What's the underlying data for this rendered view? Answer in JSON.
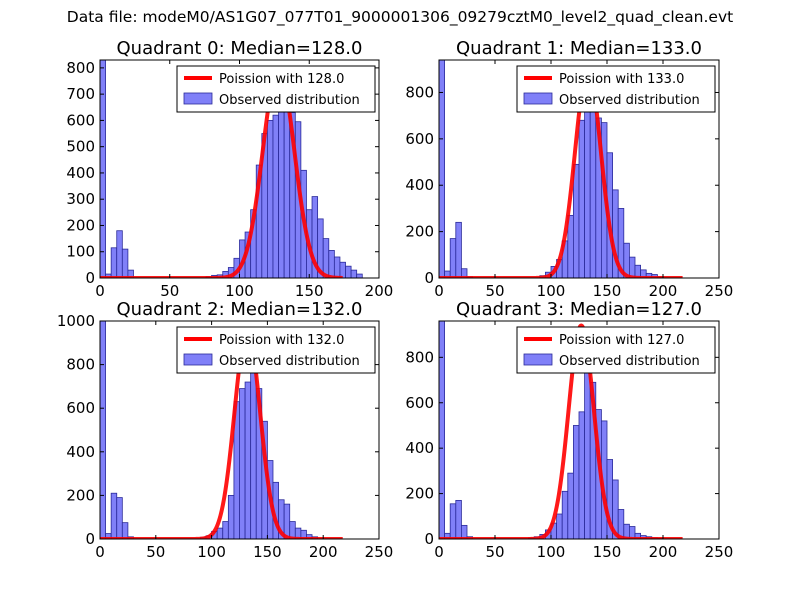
{
  "figure": {
    "suptitle": "Data file: modeM0/AS1G07_077T01_9000001306_09279cztM0_level2_quad_clean.evt"
  },
  "chart_data": [
    {
      "type": "bar",
      "title": "Quadrant 0: Median=128.0",
      "xlim": [
        0,
        200
      ],
      "ylim": [
        0,
        830
      ],
      "xticks": [
        0,
        50,
        100,
        150,
        200
      ],
      "yticks": [
        0,
        100,
        200,
        300,
        400,
        500,
        600,
        700,
        800
      ],
      "legend": {
        "position": "top-right",
        "line_label": "Poission with 128.0",
        "bar_label": "Observed distribution"
      },
      "poisson_mean": 128.0,
      "poisson_peak": 800,
      "bin_width": 4,
      "bin_starts": [
        0,
        4,
        8,
        12,
        16,
        20,
        76,
        80,
        84,
        88,
        92,
        96,
        100,
        104,
        108,
        112,
        116,
        120,
        124,
        128,
        132,
        136,
        140,
        144,
        148,
        152,
        156,
        160,
        164,
        168,
        172,
        176,
        180,
        184
      ],
      "counts": [
        830,
        15,
        115,
        180,
        110,
        30,
        5,
        10,
        12,
        25,
        40,
        75,
        145,
        175,
        260,
        430,
        550,
        600,
        620,
        680,
        690,
        630,
        595,
        410,
        260,
        310,
        225,
        150,
        105,
        80,
        60,
        45,
        30,
        15
      ]
    },
    {
      "type": "bar",
      "title": "Quadrant 1: Median=133.0",
      "xlim": [
        0,
        250
      ],
      "ylim": [
        0,
        940
      ],
      "xticks": [
        0,
        50,
        100,
        150,
        200,
        250
      ],
      "yticks": [
        0,
        200,
        400,
        600,
        800
      ],
      "legend": {
        "position": "top-right",
        "line_label": "Poission with 133.0",
        "bar_label": "Observed distribution"
      },
      "poisson_mean": 133.0,
      "poisson_peak": 900,
      "bin_width": 5,
      "bin_starts": [
        0,
        5,
        10,
        15,
        20,
        25,
        90,
        95,
        100,
        105,
        110,
        115,
        120,
        125,
        130,
        135,
        140,
        145,
        150,
        155,
        160,
        165,
        170,
        175,
        180,
        185,
        190,
        195
      ],
      "counts": [
        940,
        30,
        170,
        240,
        40,
        5,
        10,
        25,
        50,
        80,
        160,
        270,
        490,
        680,
        720,
        840,
        690,
        670,
        540,
        380,
        300,
        150,
        90,
        55,
        35,
        20,
        15,
        5
      ]
    },
    {
      "type": "bar",
      "title": "Quadrant 2: Median=132.0",
      "xlim": [
        0,
        250
      ],
      "ylim": [
        0,
        1000
      ],
      "xticks": [
        0,
        50,
        100,
        150,
        200,
        250
      ],
      "yticks": [
        0,
        200,
        400,
        600,
        800,
        1000
      ],
      "legend": {
        "position": "top-right",
        "line_label": "Poission with 132.0",
        "bar_label": "Observed distribution"
      },
      "poisson_mean": 132.0,
      "poisson_peak": 960,
      "bin_width": 5,
      "bin_starts": [
        0,
        5,
        10,
        15,
        20,
        25,
        90,
        95,
        100,
        105,
        110,
        115,
        120,
        125,
        130,
        135,
        140,
        145,
        150,
        155,
        160,
        165,
        170,
        175,
        180,
        185,
        190
      ],
      "counts": [
        1000,
        25,
        210,
        190,
        75,
        10,
        8,
        15,
        35,
        50,
        80,
        200,
        630,
        690,
        720,
        820,
        690,
        540,
        360,
        260,
        180,
        160,
        80,
        50,
        40,
        20,
        10
      ]
    },
    {
      "type": "bar",
      "title": "Quadrant 3: Median=127.0",
      "xlim": [
        0,
        250
      ],
      "ylim": [
        0,
        960
      ],
      "xticks": [
        0,
        50,
        100,
        150,
        200,
        250
      ],
      "yticks": [
        0,
        200,
        400,
        600,
        800
      ],
      "legend": {
        "position": "top-right",
        "line_label": "Poission with 127.0",
        "bar_label": "Observed distribution"
      },
      "poisson_mean": 127.0,
      "poisson_peak": 940,
      "bin_width": 5,
      "bin_starts": [
        0,
        5,
        10,
        15,
        20,
        25,
        80,
        85,
        90,
        95,
        100,
        105,
        110,
        115,
        120,
        125,
        130,
        135,
        140,
        145,
        150,
        155,
        160,
        165,
        170,
        175,
        180,
        185,
        190,
        195
      ],
      "counts": [
        960,
        25,
        155,
        170,
        60,
        10,
        5,
        10,
        20,
        40,
        70,
        110,
        210,
        290,
        500,
        560,
        770,
        690,
        570,
        520,
        350,
        260,
        130,
        65,
        55,
        25,
        15,
        10,
        5,
        3
      ]
    }
  ],
  "colors": {
    "bar_fill": "#8080f8",
    "bar_edge": "#2a2a9a",
    "poisson_line": "#ff0000"
  }
}
